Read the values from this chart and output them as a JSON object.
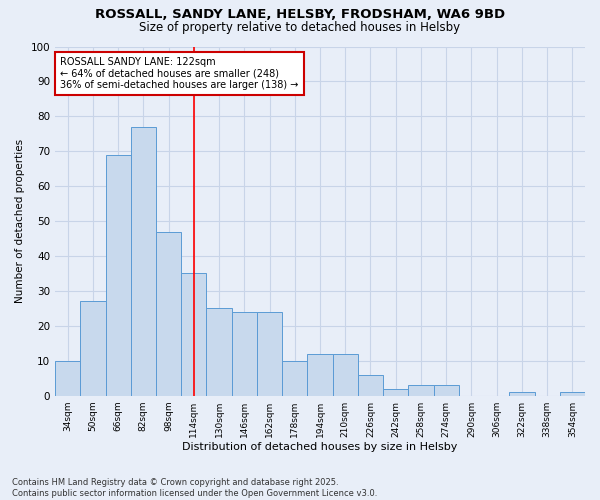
{
  "title_line1": "ROSSALL, SANDY LANE, HELSBY, FRODSHAM, WA6 9BD",
  "title_line2": "Size of property relative to detached houses in Helsby",
  "xlabel": "Distribution of detached houses by size in Helsby",
  "ylabel": "Number of detached properties",
  "categories": [
    "34sqm",
    "50sqm",
    "66sqm",
    "82sqm",
    "98sqm",
    "114sqm",
    "130sqm",
    "146sqm",
    "162sqm",
    "178sqm",
    "194sqm",
    "210sqm",
    "226sqm",
    "242sqm",
    "258sqm",
    "274sqm",
    "290sqm",
    "306sqm",
    "322sqm",
    "338sqm",
    "354sqm"
  ],
  "values": [
    10,
    27,
    69,
    77,
    47,
    35,
    25,
    24,
    24,
    10,
    12,
    12,
    6,
    2,
    3,
    3,
    0,
    0,
    1,
    0,
    1
  ],
  "bar_color": "#c8d9ed",
  "bar_edge_color": "#5b9bd5",
  "grid_color": "#c8d4e8",
  "background_color": "#e8eef8",
  "annotation_text": "ROSSALL SANDY LANE: 122sqm\n← 64% of detached houses are smaller (248)\n36% of semi-detached houses are larger (138) →",
  "annotation_box_color": "#ffffff",
  "annotation_box_edge": "#cc0000",
  "ylim": [
    0,
    100
  ],
  "yticks": [
    0,
    10,
    20,
    30,
    40,
    50,
    60,
    70,
    80,
    90,
    100
  ],
  "footer": "Contains HM Land Registry data © Crown copyright and database right 2025.\nContains public sector information licensed under the Open Government Licence v3.0."
}
